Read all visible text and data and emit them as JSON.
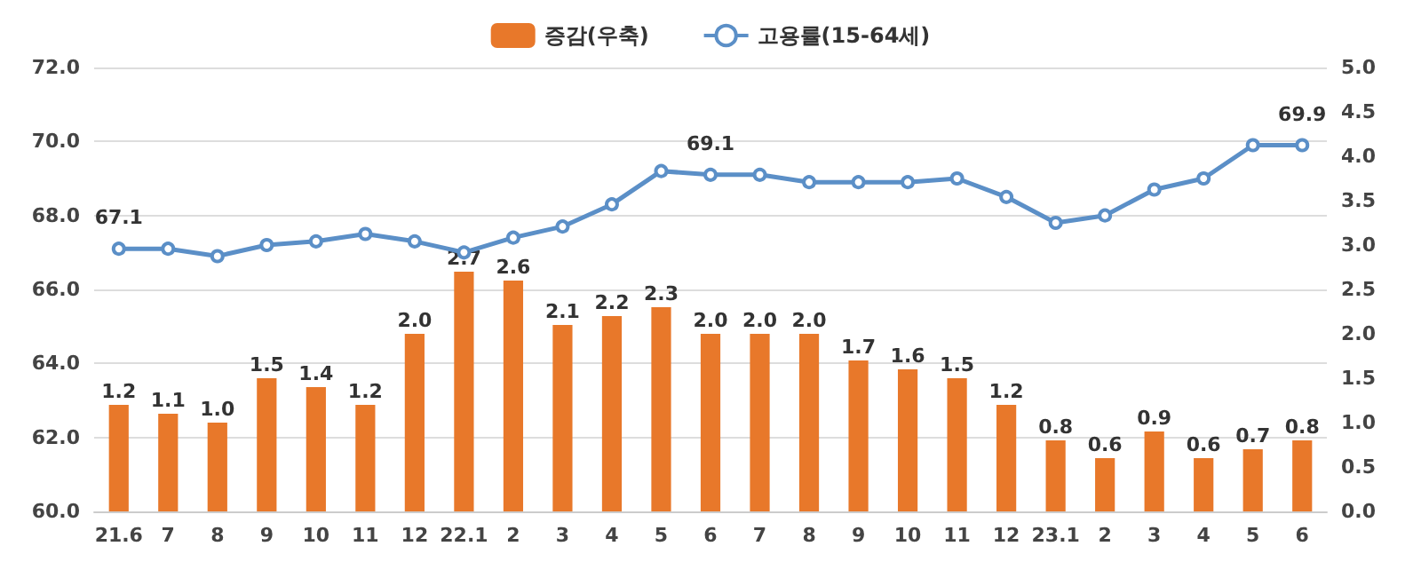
{
  "chart_data": {
    "type": "bar",
    "categories": [
      "21.6",
      "7",
      "8",
      "9",
      "10",
      "11",
      "12",
      "22.1",
      "2",
      "3",
      "4",
      "5",
      "6",
      "7",
      "8",
      "9",
      "10",
      "11",
      "12",
      "23.1",
      "2",
      "3",
      "4",
      "5",
      "6"
    ],
    "series": [
      {
        "name": "증감(우축)",
        "axis": "y2",
        "color": "#e8782a",
        "values": [
          1.2,
          1.1,
          1.0,
          1.5,
          1.4,
          1.2,
          2.0,
          2.7,
          2.6,
          2.1,
          2.2,
          2.3,
          2.0,
          2.0,
          2.0,
          1.7,
          1.6,
          1.5,
          1.2,
          0.8,
          0.6,
          0.9,
          0.6,
          0.7,
          0.8
        ],
        "value_labels": [
          "1.2",
          "1.1",
          "1.0",
          "1.5",
          "1.4",
          "1.2",
          "2.0",
          "2.7",
          "2.6",
          "2.1",
          "2.2",
          "2.3",
          "2.0",
          "2.0",
          "2.0",
          "1.7",
          "1.6",
          "1.5",
          "1.2",
          "0.8",
          "0.6",
          "0.9",
          "0.6",
          "0.7",
          "0.8"
        ]
      },
      {
        "name": "고용률(15-64세)",
        "type": "line",
        "color": "#5b8fc7",
        "values": [
          67.1,
          67.1,
          66.9,
          67.2,
          67.3,
          67.5,
          67.3,
          67.0,
          67.4,
          67.7,
          68.3,
          69.2,
          69.1,
          69.1,
          68.9,
          68.9,
          68.9,
          69.0,
          68.5,
          67.8,
          68.0,
          68.7,
          69.0,
          69.9,
          69.9
        ],
        "value_labels": [
          "67.1",
          null,
          null,
          null,
          null,
          null,
          null,
          null,
          null,
          null,
          null,
          null,
          "69.1",
          null,
          null,
          null,
          null,
          null,
          null,
          null,
          null,
          null,
          null,
          null,
          "69.9"
        ]
      }
    ],
    "ylim": [
      60,
      72
    ],
    "yticks": [
      {
        "value": 60,
        "label": "60.0"
      },
      {
        "value": 62,
        "label": "62.0"
      },
      {
        "value": 64,
        "label": "64.0"
      },
      {
        "value": 66,
        "label": "66.0"
      },
      {
        "value": 68,
        "label": "68.0"
      },
      {
        "value": 70,
        "label": "70.0"
      },
      {
        "value": 72,
        "label": "72.0"
      }
    ],
    "y2lim": [
      0,
      5
    ],
    "y2ticks": [
      {
        "value": 0,
        "label": "0.0"
      },
      {
        "value": 0.5,
        "label": "0.5"
      },
      {
        "value": 1,
        "label": "1.0"
      },
      {
        "value": 1.5,
        "label": "1.5"
      },
      {
        "value": 2,
        "label": "2.0"
      },
      {
        "value": 2.5,
        "label": "2.5"
      },
      {
        "value": 3,
        "label": "3.0"
      },
      {
        "value": 3.5,
        "label": "3.5"
      },
      {
        "value": 4,
        "label": "4.0"
      },
      {
        "value": 4.5,
        "label": "4.5"
      },
      {
        "value": 5,
        "label": "5.0"
      }
    ],
    "grid": "y",
    "legend": "top",
    "marker": "circle",
    "line_style": "solid"
  }
}
